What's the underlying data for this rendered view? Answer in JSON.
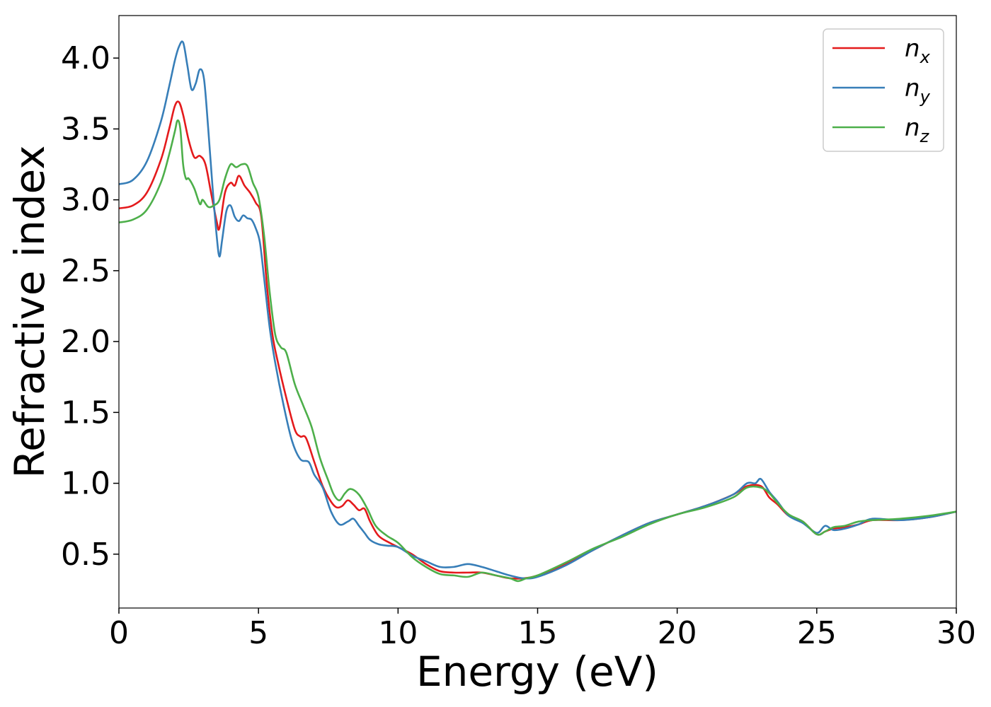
{
  "chart_data": {
    "type": "line",
    "title": "",
    "xlabel": "Energy (eV)",
    "ylabel": "Refractive index",
    "xlim": [
      0,
      30
    ],
    "ylim": [
      0.12,
      4.3
    ],
    "xticks": [
      0,
      5,
      10,
      15,
      20,
      25,
      30
    ],
    "xtick_labels": [
      "0",
      "5",
      "10",
      "15",
      "20",
      "25",
      "30"
    ],
    "yticks": [
      0.5,
      1.0,
      1.5,
      2.0,
      2.5,
      3.0,
      3.5,
      4.0
    ],
    "ytick_labels": [
      "0.5",
      "1.0",
      "1.5",
      "2.0",
      "2.5",
      "3.0",
      "3.5",
      "4.0"
    ],
    "legend_position": "top-right",
    "grid": false,
    "series": [
      {
        "name": "n_x",
        "base": "n",
        "sub": "x",
        "color": "#e41a1c",
        "x": [
          0,
          0.5,
          1,
          1.5,
          1.8,
          2.0,
          2.15,
          2.3,
          2.5,
          2.7,
          2.9,
          3.1,
          3.3,
          3.5,
          3.6,
          3.8,
          4.0,
          4.15,
          4.3,
          4.5,
          4.7,
          4.9,
          5.1,
          5.3,
          5.5,
          5.7,
          6.0,
          6.3,
          6.5,
          6.7,
          7.0,
          7.3,
          7.6,
          7.8,
          8.0,
          8.2,
          8.4,
          8.6,
          8.8,
          9.0,
          9.3,
          9.7,
          10.0,
          10.5,
          11.0,
          11.5,
          12.0,
          12.5,
          13.0,
          13.5,
          14.0,
          14.5,
          15.0,
          16.0,
          17.0,
          18.0,
          19.0,
          20.0,
          21.0,
          22.0,
          22.5,
          23.0,
          23.3,
          23.6,
          24.0,
          24.5,
          25.0,
          25.3,
          25.6,
          26.0,
          26.5,
          27.0,
          28.0,
          29.0,
          30.0
        ],
        "y": [
          2.94,
          2.96,
          3.05,
          3.28,
          3.5,
          3.66,
          3.69,
          3.6,
          3.42,
          3.3,
          3.31,
          3.25,
          3.05,
          2.85,
          2.8,
          3.05,
          3.12,
          3.1,
          3.17,
          3.1,
          3.05,
          2.98,
          2.88,
          2.4,
          2.05,
          1.85,
          1.6,
          1.38,
          1.33,
          1.32,
          1.15,
          0.98,
          0.87,
          0.83,
          0.84,
          0.88,
          0.85,
          0.81,
          0.82,
          0.73,
          0.63,
          0.58,
          0.55,
          0.5,
          0.43,
          0.38,
          0.37,
          0.37,
          0.37,
          0.35,
          0.33,
          0.33,
          0.35,
          0.43,
          0.53,
          0.63,
          0.72,
          0.78,
          0.84,
          0.92,
          0.98,
          0.98,
          0.9,
          0.85,
          0.77,
          0.73,
          0.64,
          0.66,
          0.68,
          0.69,
          0.71,
          0.74,
          0.74,
          0.76,
          0.8
        ]
      },
      {
        "name": "n_y",
        "base": "n",
        "sub": "y",
        "color": "#377eb8",
        "x": [
          0,
          0.5,
          1,
          1.5,
          1.8,
          2.0,
          2.15,
          2.3,
          2.45,
          2.6,
          2.75,
          2.9,
          3.05,
          3.2,
          3.35,
          3.5,
          3.6,
          3.7,
          3.85,
          4.0,
          4.15,
          4.3,
          4.45,
          4.6,
          4.75,
          4.9,
          5.05,
          5.2,
          5.4,
          5.6,
          5.9,
          6.2,
          6.5,
          6.8,
          7.0,
          7.3,
          7.6,
          7.9,
          8.2,
          8.4,
          8.6,
          8.8,
          9.0,
          9.3,
          9.6,
          10.0,
          10.5,
          11.0,
          11.5,
          12.0,
          12.5,
          13.0,
          13.5,
          14.0,
          14.5,
          15.0,
          16.0,
          17.0,
          18.0,
          19.0,
          20.0,
          21.0,
          22.0,
          22.5,
          22.8,
          23.0,
          23.3,
          23.6,
          24.0,
          24.5,
          25.0,
          25.3,
          25.6,
          26.0,
          26.5,
          27.0,
          28.0,
          29.0,
          30.0
        ],
        "y": [
          3.11,
          3.14,
          3.27,
          3.55,
          3.8,
          3.98,
          4.08,
          4.11,
          3.95,
          3.78,
          3.82,
          3.92,
          3.85,
          3.5,
          3.1,
          2.75,
          2.6,
          2.72,
          2.92,
          2.96,
          2.88,
          2.85,
          2.89,
          2.87,
          2.86,
          2.8,
          2.7,
          2.45,
          2.1,
          1.85,
          1.55,
          1.3,
          1.17,
          1.15,
          1.06,
          0.97,
          0.8,
          0.71,
          0.73,
          0.75,
          0.7,
          0.65,
          0.6,
          0.57,
          0.56,
          0.55,
          0.49,
          0.45,
          0.41,
          0.41,
          0.43,
          0.41,
          0.38,
          0.35,
          0.33,
          0.34,
          0.42,
          0.53,
          0.63,
          0.72,
          0.78,
          0.84,
          0.92,
          1.0,
          1.0,
          1.03,
          0.94,
          0.87,
          0.77,
          0.72,
          0.65,
          0.7,
          0.67,
          0.68,
          0.71,
          0.75,
          0.74,
          0.76,
          0.8
        ]
      },
      {
        "name": "n_z",
        "base": "n",
        "sub": "z",
        "color": "#4daf4a",
        "x": [
          0,
          0.5,
          1,
          1.5,
          1.8,
          2.0,
          2.1,
          2.2,
          2.3,
          2.4,
          2.5,
          2.7,
          2.9,
          3.0,
          3.2,
          3.4,
          3.6,
          3.8,
          4.0,
          4.2,
          4.4,
          4.6,
          4.8,
          5.0,
          5.2,
          5.4,
          5.6,
          5.8,
          6.0,
          6.3,
          6.6,
          6.9,
          7.2,
          7.5,
          7.7,
          7.9,
          8.1,
          8.3,
          8.6,
          8.9,
          9.2,
          9.6,
          10.0,
          10.5,
          11.0,
          11.5,
          12.0,
          12.5,
          13.0,
          13.5,
          14.0,
          14.3,
          14.6,
          15.0,
          16.0,
          17.0,
          18.0,
          19.0,
          20.0,
          21.0,
          22.0,
          22.5,
          23.0,
          23.3,
          23.6,
          24.0,
          24.5,
          25.0,
          25.3,
          25.6,
          26.0,
          26.5,
          27.0,
          28.0,
          29.0,
          30.0
        ],
        "y": [
          2.84,
          2.86,
          2.93,
          3.12,
          3.32,
          3.48,
          3.56,
          3.5,
          3.25,
          3.15,
          3.15,
          3.08,
          2.97,
          3.0,
          2.95,
          2.96,
          3.0,
          3.15,
          3.25,
          3.23,
          3.25,
          3.24,
          3.12,
          3.02,
          2.75,
          2.35,
          2.05,
          1.96,
          1.92,
          1.7,
          1.55,
          1.4,
          1.18,
          1.02,
          0.92,
          0.88,
          0.93,
          0.96,
          0.92,
          0.82,
          0.7,
          0.63,
          0.58,
          0.48,
          0.41,
          0.36,
          0.35,
          0.34,
          0.37,
          0.35,
          0.33,
          0.31,
          0.33,
          0.35,
          0.44,
          0.54,
          0.62,
          0.71,
          0.78,
          0.83,
          0.9,
          0.97,
          0.97,
          0.93,
          0.86,
          0.78,
          0.73,
          0.64,
          0.66,
          0.69,
          0.7,
          0.73,
          0.74,
          0.75,
          0.77,
          0.8
        ]
      }
    ]
  }
}
